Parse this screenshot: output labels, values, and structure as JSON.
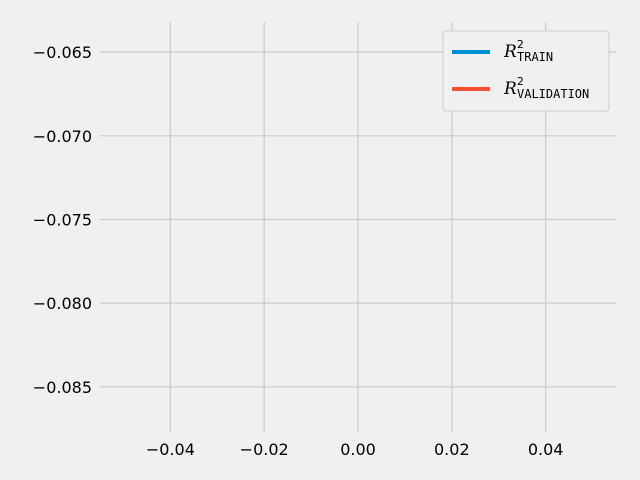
{
  "chart_data": {
    "type": "line",
    "title": "",
    "xlabel": "",
    "ylabel": "",
    "xlim": [
      -0.055,
      0.055
    ],
    "ylim": [
      -0.0877,
      -0.0632
    ],
    "xticks": [
      -0.04,
      -0.02,
      0.0,
      0.02,
      0.04
    ],
    "xtick_labels": [
      "−0.04",
      "−0.02",
      "0.00",
      "0.02",
      "0.04"
    ],
    "yticks": [
      -0.065,
      -0.07,
      -0.075,
      -0.08,
      -0.085
    ],
    "ytick_labels": [
      "−0.065",
      "−0.070",
      "−0.075",
      "−0.080",
      "−0.085"
    ],
    "grid": true,
    "legend_position": "top-right",
    "background_color": "#f0f0f0",
    "grid_color": "#cbcbcb",
    "series": [
      {
        "name_main": "R",
        "name_sup": "2",
        "name_sub": "TRAIN",
        "color": "#008fd5",
        "x": [],
        "y": []
      },
      {
        "name_main": "R",
        "name_sup": "2",
        "name_sub": "VALIDATION",
        "color": "#fc4f30",
        "x": [],
        "y": []
      }
    ]
  }
}
